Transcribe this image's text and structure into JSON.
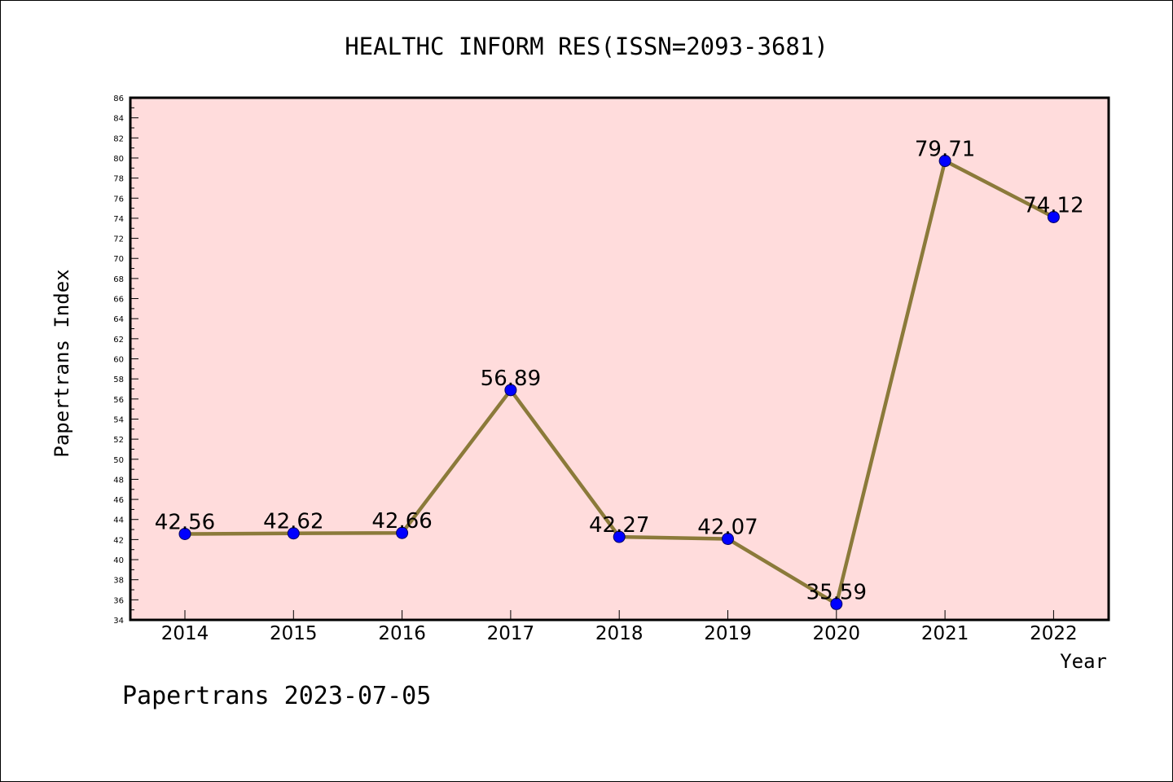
{
  "chart_data": {
    "type": "line",
    "title": "HEALTHC INFORM RES(ISSN=2093-3681)",
    "xlabel": "Year",
    "ylabel": "Papertrans Index",
    "categories": [
      "2014",
      "2015",
      "2016",
      "2017",
      "2018",
      "2019",
      "2020",
      "2021",
      "2022"
    ],
    "series": [
      {
        "values": [
          42.56,
          42.62,
          42.66,
          56.89,
          42.27,
          42.07,
          35.59,
          79.71,
          74.12
        ],
        "labels": [
          "42.56",
          "42.62",
          "42.66",
          "56.89",
          "42.27",
          "42.07",
          "35.59",
          "79.71",
          "74.12"
        ]
      }
    ],
    "ylim": [
      34,
      86
    ],
    "ytick_step": 2,
    "grid": false,
    "legend": "none",
    "footer": "Papertrans 2023-07-05",
    "colors": {
      "plot_background": "#ffdcdc",
      "line": "#8b7a3a",
      "marker": "#0000ff",
      "axis": "#000000"
    }
  }
}
